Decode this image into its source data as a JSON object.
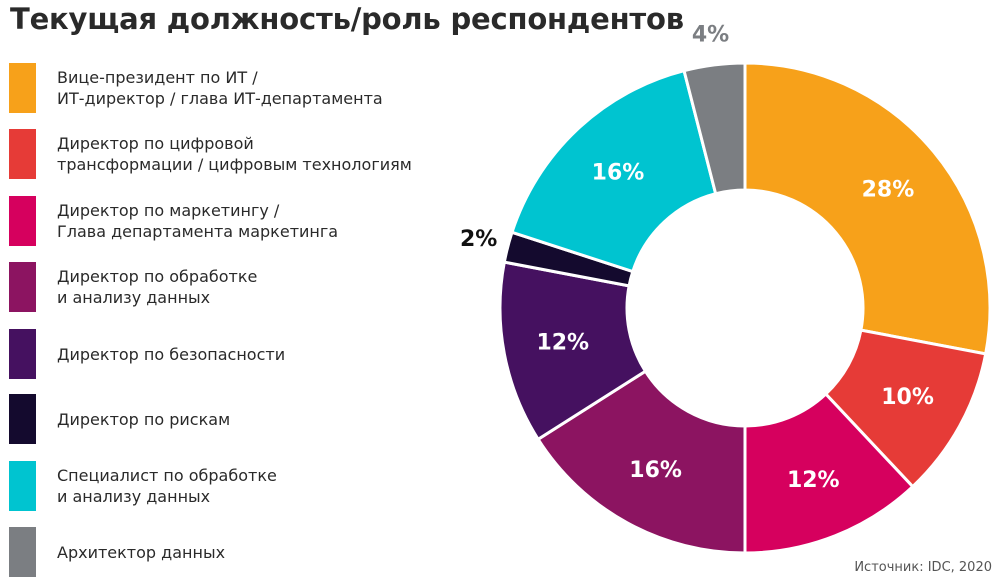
{
  "chart_data": {
    "type": "pie",
    "donut": true,
    "title": "Текущая должность/роль респондентов",
    "source": "Источник: IDC, 2020",
    "slices": [
      {
        "label": "Вице-президент по ИТ /\nИТ-директор / глава ИТ-департамента",
        "value": 28,
        "value_label": "28%",
        "color": "#f7a11a"
      },
      {
        "label": "Директор по цифровой\nтрансформации / цифровым технологиям",
        "value": 10,
        "value_label": "10%",
        "color": "#e63b37"
      },
      {
        "label": "Директор по маркетингу /\nГлава департамента маркетинга",
        "value": 12,
        "value_label": "12%",
        "color": "#d6005e"
      },
      {
        "label": "Директор по обработке\nи анализу данных",
        "value": 16,
        "value_label": "16%",
        "color": "#8c1461"
      },
      {
        "label": "Директор по безопасности",
        "value": 12,
        "value_label": "12%",
        "color": "#451160"
      },
      {
        "label": "Директор по рискам",
        "value": 2,
        "value_label": "2%",
        "color": "#140a2e"
      },
      {
        "label": "Специалист по обработке\nи анализу данных",
        "value": 16,
        "value_label": "16%",
        "color": "#00c4d0"
      },
      {
        "label": "Архитектор данных",
        "value": 4,
        "value_label": "4%",
        "color": "#7b7e82"
      }
    ]
  }
}
